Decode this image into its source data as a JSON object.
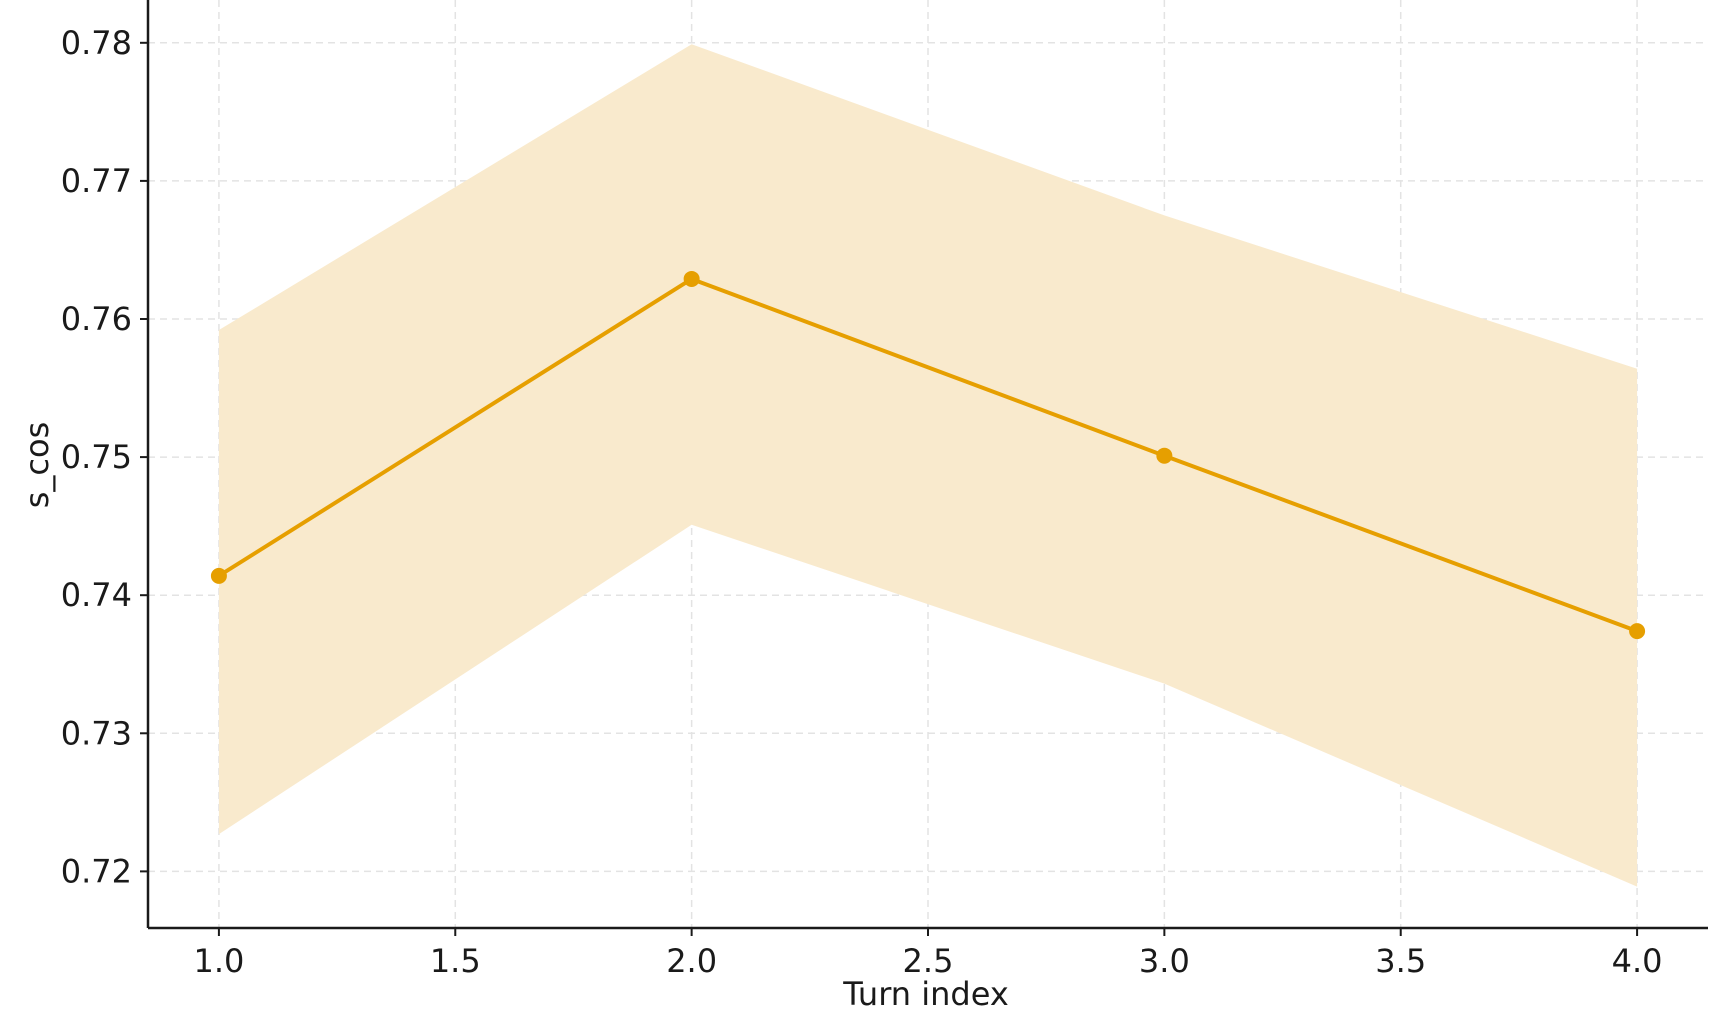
{
  "chart_data": {
    "type": "line",
    "title": "",
    "xlabel": "Turn index",
    "ylabel": "s_cos",
    "x": [
      1.0,
      2.0,
      3.0,
      4.0
    ],
    "series": [
      {
        "values": [
          0.7414,
          0.7629,
          0.7501,
          0.7374
        ],
        "lower": [
          0.7227,
          0.7451,
          0.7336,
          0.7189
        ],
        "upper": [
          0.7592,
          0.7799,
          0.7675,
          0.7564
        ],
        "color": "#E69F00",
        "band_color": "#F9EACD"
      }
    ],
    "xticks": [
      "1.0",
      "1.5",
      "2.0",
      "2.5",
      "3.0",
      "3.5",
      "4.0"
    ],
    "yticks": [
      "0.72",
      "0.73",
      "0.74",
      "0.75",
      "0.76",
      "0.77",
      "0.78"
    ],
    "xlim": [
      0.85,
      4.15
    ],
    "ylim": [
      0.7159,
      0.7831
    ],
    "grid": true
  }
}
